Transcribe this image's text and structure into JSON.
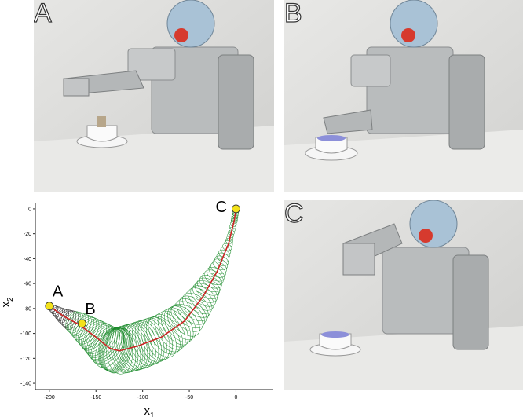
{
  "panels": {
    "a": {
      "letter": "A"
    },
    "b": {
      "letter": "B"
    },
    "c": {
      "letter": "C"
    }
  },
  "chart_data": {
    "type": "line",
    "xlabel": "x",
    "xlabel_sub": "1",
    "ylabel": "x",
    "ylabel_sub": "2",
    "xlim": [
      -215,
      40
    ],
    "ylim": [
      -145,
      5
    ],
    "x_ticks": [
      -200,
      -150,
      -100,
      -50,
      0
    ],
    "y_ticks": [
      0,
      -20,
      -40,
      -60,
      -80,
      -100,
      -120,
      -140
    ],
    "trajectory": {
      "color": "#cc2222",
      "x": [
        -200,
        -185,
        -168,
        -150,
        -135,
        -125,
        -105,
        -80,
        -55,
        -35,
        -20,
        -8,
        -2,
        0
      ],
      "y": [
        -78,
        -86,
        -93,
        -103,
        -112,
        -114,
        -110,
        -103,
        -90,
        -70,
        -50,
        -28,
        -10,
        0
      ]
    },
    "envelope_color": "#1a8a2a",
    "markers": [
      {
        "label": "A",
        "x": -200,
        "y": -78
      },
      {
        "label": "B",
        "x": -165,
        "y": -92
      },
      {
        "label": "C",
        "x": 0,
        "y": 0
      }
    ],
    "marker_color": "#f3e21b"
  }
}
